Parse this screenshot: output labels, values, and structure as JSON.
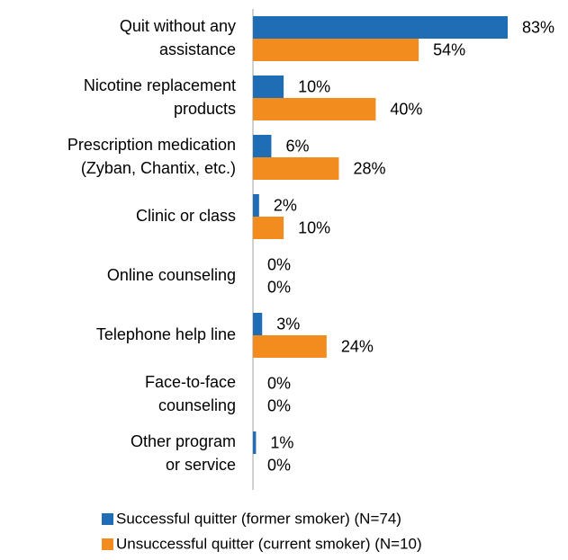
{
  "chart_data": {
    "type": "bar",
    "orientation": "horizontal",
    "categories": [
      [
        "Quit without any",
        "assistance"
      ],
      [
        "Nicotine replacement",
        "products"
      ],
      [
        "Prescription medication",
        "(Zyban, Chantix, etc.)"
      ],
      [
        "Clinic or class"
      ],
      [
        "Online counseling"
      ],
      [
        "Telephone help line"
      ],
      [
        "Face-to-face",
        "counseling"
      ],
      [
        "Other program",
        "or service"
      ]
    ],
    "series": [
      {
        "name": "Successful quitter (former smoker) (N=74)",
        "color": "#1f6db5",
        "values": [
          83,
          10,
          6,
          2,
          0,
          3,
          0,
          1
        ],
        "value_labels": [
          "83%",
          "10%",
          "6%",
          "2%",
          "0%",
          "3%",
          "0%",
          "1%"
        ]
      },
      {
        "name": "Unsuccessful quitter (current smoker) (N=10)",
        "color": "#f28c1e",
        "values": [
          54,
          40,
          28,
          10,
          0,
          24,
          0,
          0
        ],
        "value_labels": [
          "54%",
          "40%",
          "28%",
          "10%",
          "0%",
          "24%",
          "0%",
          "0%"
        ]
      }
    ],
    "xlim": [
      0,
      100
    ],
    "legend": "bottom"
  }
}
